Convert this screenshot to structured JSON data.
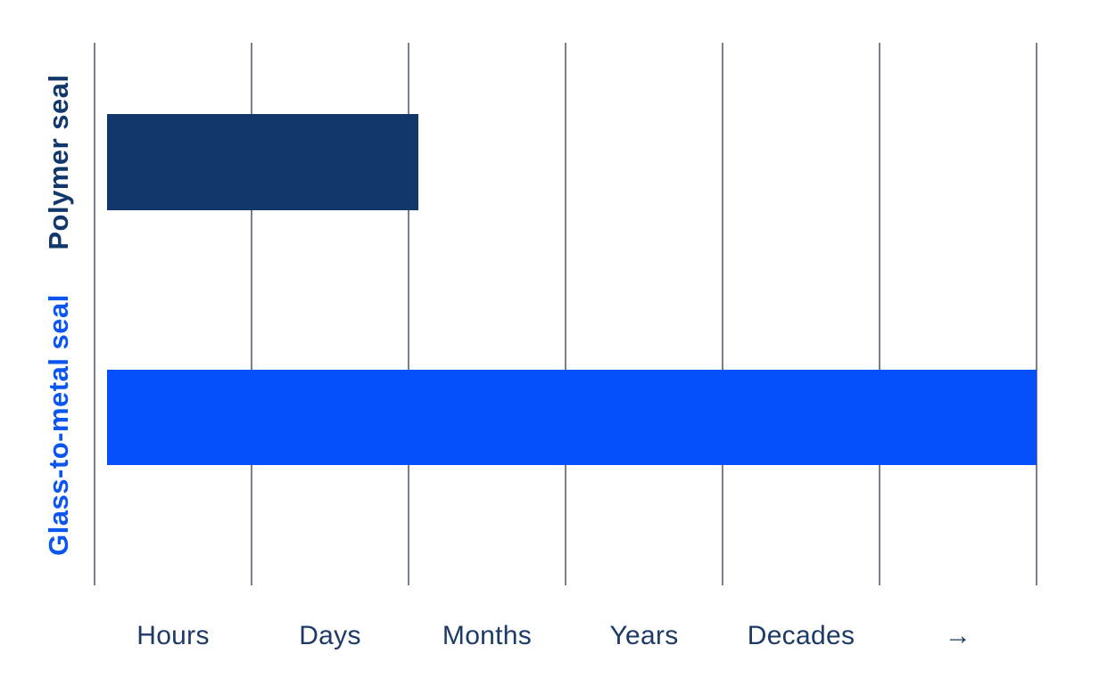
{
  "chart_data": {
    "type": "bar",
    "orientation": "horizontal",
    "title": "",
    "xlabel": "",
    "ylabel": "",
    "categories": [
      "Polymer seal",
      "Glass-to-metal seal"
    ],
    "x_tick_labels": [
      "Hours",
      "Days",
      "Months",
      "Years",
      "Decades",
      "→"
    ],
    "bars": [
      {
        "category": "Polymer seal",
        "start_units": 0.08,
        "end_units": 2.06,
        "color": "#11376b",
        "label_color": "#11376b"
      },
      {
        "category": "Glass-to-metal seal",
        "start_units": 0.08,
        "end_units": 6.0,
        "color": "#0550fa",
        "label_color": "#0b55f0"
      }
    ],
    "axis": {
      "unit_min": 0,
      "unit_max": 6,
      "gridline_count": 7,
      "gridline_color": "#75818f",
      "tick_label_color": "#1d3a66",
      "grid": true,
      "legend": "none"
    },
    "note_arrow_meaning": "→"
  }
}
